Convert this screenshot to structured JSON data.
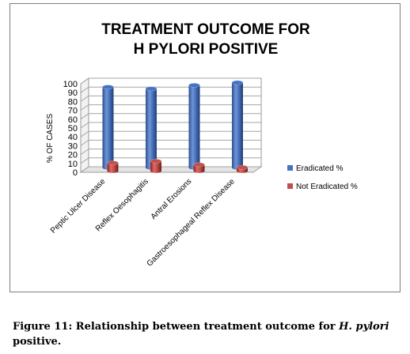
{
  "chart_data": {
    "type": "bar",
    "title_lines": [
      "TREATMENT OUTCOME FOR",
      "H PYLORI POSITIVE"
    ],
    "ylabel": "% OF CASES",
    "xlabel": "",
    "ylim": [
      0,
      100
    ],
    "yticks": [
      0,
      10,
      20,
      30,
      40,
      50,
      60,
      70,
      80,
      90,
      100
    ],
    "categories": [
      "Peptic Ulcer Disease",
      "Reflex Oesophagitis",
      "Antral Erosions",
      "Gastroesophageal Reflex Disease"
    ],
    "series": [
      {
        "name": "Eradicated %",
        "color": "#4472c4",
        "values": [
          91,
          89,
          93,
          96
        ]
      },
      {
        "name": "Not Eradicated %",
        "color": "#c0504d",
        "values": [
          9,
          11,
          7,
          4
        ]
      }
    ],
    "grid": true,
    "legend": "right",
    "style": "3d-cylinder"
  },
  "caption": {
    "prefix": "Figure 11: Relationship between treatment outcome for ",
    "italic": "H. pylori",
    "suffix": " positive."
  }
}
